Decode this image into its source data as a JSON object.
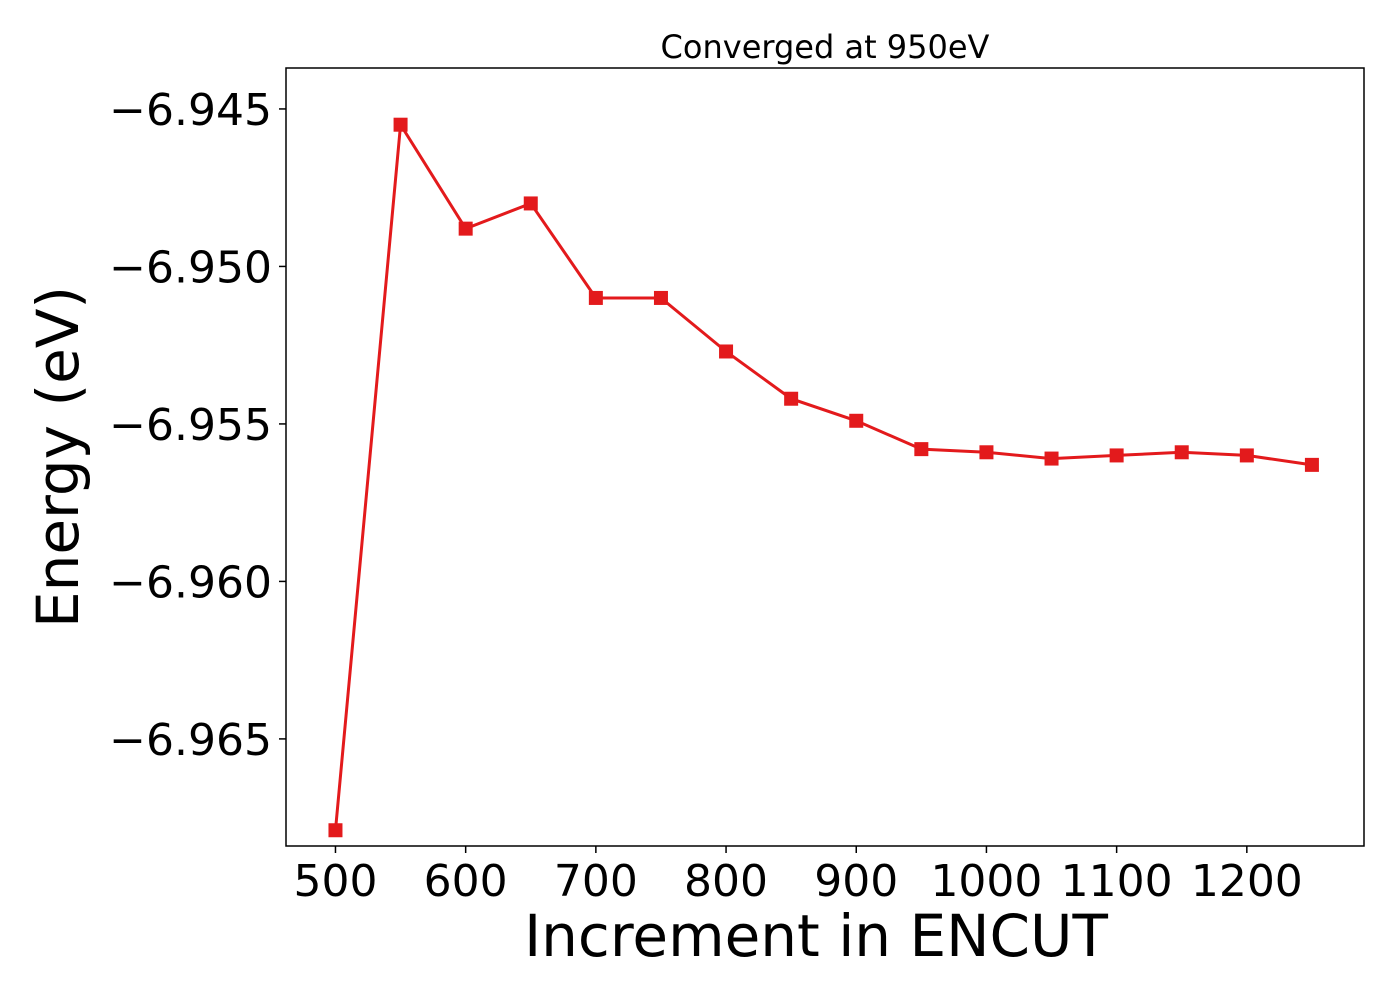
{
  "chart_data": {
    "type": "line",
    "title": "Converged at 950eV",
    "xlabel": "Increment in ENCUT",
    "ylabel": "Energy (eV)",
    "xlim": [
      462,
      1290
    ],
    "ylim": [
      -6.9684,
      -6.9437
    ],
    "x_ticks": [
      500,
      600,
      700,
      800,
      900,
      1000,
      1100,
      1200
    ],
    "x_tick_labels": [
      "500",
      "600",
      "700",
      "800",
      "900",
      "1000",
      "1100",
      "1200"
    ],
    "y_ticks": [
      -6.945,
      -6.95,
      -6.955,
      -6.96,
      -6.965
    ],
    "y_tick_labels": [
      "−6.945",
      "−6.950",
      "−6.955",
      "−6.960",
      "−6.965"
    ],
    "grid": false,
    "marker": "square",
    "color": "#e31a1c",
    "x": [
      500,
      550,
      600,
      650,
      700,
      750,
      800,
      850,
      900,
      950,
      1000,
      1050,
      1100,
      1150,
      1200,
      1250
    ],
    "y": [
      -6.9679,
      -6.9455,
      -6.9488,
      -6.948,
      -6.951,
      -6.951,
      -6.9527,
      -6.9542,
      -6.9549,
      -6.9558,
      -6.9559,
      -6.9561,
      -6.956,
      -6.9559,
      -6.956,
      -6.9563
    ]
  }
}
